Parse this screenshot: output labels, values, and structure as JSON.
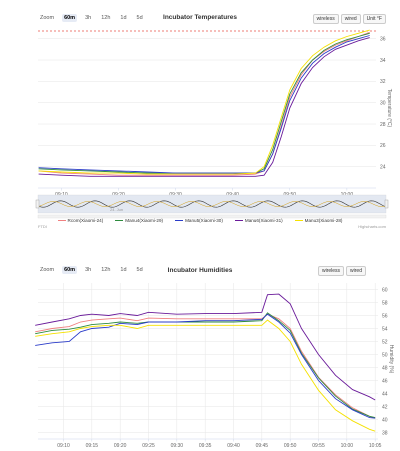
{
  "chart1": {
    "title": "Incubator Temperatures",
    "zoom_label": "Zoom",
    "zoom_options": [
      "60m",
      "3h",
      "12h",
      "1d",
      "5d"
    ],
    "zoom_selected": "60m",
    "toolbar": [
      "wireless",
      "wired",
      "Unit °F"
    ],
    "ylabel": "Temperature (°C)",
    "credit_left": "FTDI",
    "credit_right": "Highcharts.com",
    "navigator_label": "24. Jun",
    "chart_data": {
      "type": "line",
      "title": "Incubator Temperatures",
      "ylabel": "Temperature (°C)",
      "ylim": [
        22,
        37
      ],
      "yticks": [
        24,
        26,
        28,
        30,
        32,
        34,
        36
      ],
      "xlim": [
        5.9,
        65.1
      ],
      "xticks": [
        [
          10,
          "09:10"
        ],
        [
          20,
          "09:20"
        ],
        [
          30,
          "09:30"
        ],
        [
          40,
          "09:40"
        ],
        [
          50,
          "09:50"
        ],
        [
          60,
          "10:00"
        ]
      ],
      "legend_position": "bottom",
      "series": [
        {
          "name": "Rcom(Xiaomi-24)",
          "color": "#f08080",
          "x": [
            6,
            10,
            15,
            20,
            25,
            30,
            35,
            40,
            44,
            45.5,
            47,
            48.5,
            50,
            52,
            54,
            56,
            58,
            60,
            62,
            64
          ],
          "y": [
            23.6,
            23.4,
            23.3,
            23.2,
            23.2,
            23.2,
            23.2,
            23.2,
            23.3,
            23.6,
            25.2,
            27.8,
            30.5,
            32.6,
            34.0,
            34.8,
            35.4,
            35.8,
            36.2,
            36.6
          ]
        },
        {
          "name": "Manu4(Xiaomi-29)",
          "color": "#2e8b3e",
          "x": [
            6,
            10,
            15,
            20,
            25,
            30,
            35,
            40,
            44,
            45.5,
            47,
            48.5,
            50,
            52,
            54,
            56,
            58,
            60,
            62,
            64
          ],
          "y": [
            23.8,
            23.7,
            23.6,
            23.5,
            23.4,
            23.4,
            23.4,
            23.4,
            23.4,
            23.8,
            25.6,
            28.2,
            30.8,
            32.8,
            34.0,
            34.9,
            35.5,
            35.9,
            36.2,
            36.5
          ]
        },
        {
          "name": "Manu5(Xiaomi-30)",
          "color": "#2b3cc8",
          "x": [
            6,
            10,
            15,
            20,
            25,
            30,
            35,
            40,
            44,
            45.5,
            47,
            48.5,
            50,
            52,
            54,
            56,
            58,
            60,
            62,
            64
          ],
          "y": [
            23.9,
            23.8,
            23.7,
            23.6,
            23.5,
            23.4,
            23.4,
            23.4,
            23.4,
            23.6,
            25.2,
            27.6,
            30.2,
            32.3,
            33.7,
            34.6,
            35.2,
            35.7,
            36.0,
            36.3
          ]
        },
        {
          "name": "Manu6(Xiaomi-31)",
          "color": "#6a1b9a",
          "x": [
            6,
            10,
            15,
            20,
            25,
            30,
            35,
            40,
            44,
            45.5,
            47,
            48.5,
            50,
            52,
            54,
            56,
            58,
            60,
            62,
            64
          ],
          "y": [
            23.3,
            23.2,
            23.1,
            23.1,
            23.1,
            23.1,
            23.1,
            23.1,
            23.1,
            23.2,
            24.4,
            26.8,
            29.5,
            31.8,
            33.3,
            34.3,
            35.0,
            35.4,
            35.8,
            36.1
          ]
        },
        {
          "name": "Manu3(Xiaomi-28)",
          "color": "#f5e100",
          "x": [
            6,
            10,
            15,
            20,
            25,
            30,
            35,
            40,
            44,
            45.5,
            47,
            48.5,
            50,
            52,
            54,
            56,
            58,
            60,
            62,
            64
          ],
          "y": [
            23.6,
            23.5,
            23.4,
            23.4,
            23.3,
            23.3,
            23.3,
            23.3,
            23.4,
            24.0,
            26.0,
            28.6,
            31.2,
            33.2,
            34.4,
            35.2,
            35.8,
            36.2,
            36.5,
            36.8
          ]
        }
      ]
    }
  },
  "chart2": {
    "title": "Incubator Humidities",
    "zoom_label": "Zoom",
    "zoom_options": [
      "60m",
      "3h",
      "12h",
      "1d",
      "5d"
    ],
    "zoom_selected": "60m",
    "toolbar": [
      "wireless",
      "wired"
    ],
    "ylabel": "Humidity (%)",
    "chart_data": {
      "type": "line",
      "title": "Incubator Humidities",
      "ylabel": "Humidity (%)",
      "ylim": [
        37,
        61
      ],
      "yticks": [
        38,
        40,
        42,
        44,
        46,
        48,
        50,
        52,
        54,
        56,
        58,
        60
      ],
      "xlim": [
        5.5,
        65.5
      ],
      "xticks": [
        [
          10,
          "09:10"
        ],
        [
          15,
          "09:15"
        ],
        [
          20,
          "09:20"
        ],
        [
          25,
          "09:25"
        ],
        [
          30,
          "09:30"
        ],
        [
          35,
          "09:35"
        ],
        [
          40,
          "09:40"
        ],
        [
          45,
          "09:45"
        ],
        [
          50,
          "09:50"
        ],
        [
          55,
          "09:55"
        ],
        [
          60,
          "10:00"
        ],
        [
          65,
          "10:05"
        ]
      ],
      "series": [
        {
          "name": "Rcom(Xiaomi-24)",
          "color": "#f08080",
          "x": [
            5,
            8,
            11,
            13,
            15,
            18,
            20,
            23,
            25,
            30,
            35,
            40,
            45,
            46,
            48,
            50,
            52,
            55,
            58,
            61,
            64,
            65
          ],
          "y": [
            53.5,
            54.0,
            54.3,
            55.0,
            55.3,
            55.5,
            55.6,
            55.2,
            55.6,
            55.5,
            55.5,
            55.5,
            55.5,
            56.2,
            55.5,
            54.0,
            50.5,
            46.5,
            43.8,
            41.8,
            40.5,
            40.2
          ]
        },
        {
          "name": "Manu4(Xiaomi-29)",
          "color": "#2e8b3e",
          "x": [
            5,
            8,
            11,
            13,
            15,
            18,
            20,
            23,
            25,
            30,
            35,
            40,
            45,
            46,
            48,
            50,
            52,
            55,
            58,
            61,
            64,
            65
          ],
          "y": [
            53.2,
            53.7,
            53.9,
            54.2,
            54.6,
            54.8,
            55.0,
            54.8,
            55.0,
            55.0,
            55.0,
            55.0,
            55.2,
            56.4,
            55.2,
            53.7,
            50.2,
            46.4,
            43.6,
            41.6,
            40.5,
            40.3
          ]
        },
        {
          "name": "Manu5(Xiaomi-30)",
          "color": "#2b3cc8",
          "x": [
            5,
            8,
            11,
            13,
            15,
            18,
            20,
            23,
            25,
            30,
            35,
            40,
            45,
            46,
            48,
            50,
            52,
            55,
            58,
            61,
            64,
            65
          ],
          "y": [
            51.4,
            51.8,
            52.0,
            53.5,
            54.0,
            54.2,
            54.8,
            54.6,
            55.0,
            55.0,
            55.2,
            55.2,
            55.4,
            56.2,
            55.0,
            53.3,
            50.0,
            46.0,
            43.2,
            41.5,
            40.3,
            40.2
          ]
        },
        {
          "name": "Manu6(Xiaomi-31)",
          "color": "#6a1b9a",
          "x": [
            5,
            8,
            11,
            13,
            15,
            18,
            20,
            23,
            25,
            30,
            35,
            40,
            45,
            46,
            48,
            50,
            52,
            55,
            58,
            61,
            64,
            65
          ],
          "y": [
            54.5,
            55.0,
            55.5,
            56.0,
            56.2,
            56.0,
            56.3,
            56.0,
            56.5,
            56.2,
            56.3,
            56.3,
            56.5,
            59.2,
            59.3,
            57.8,
            54.0,
            50.0,
            46.8,
            44.6,
            43.5,
            43.0
          ]
        },
        {
          "name": "Manu3(Xiaomi-28)",
          "color": "#f5e100",
          "x": [
            5,
            8,
            11,
            13,
            15,
            18,
            20,
            23,
            25,
            30,
            35,
            40,
            45,
            46,
            48,
            50,
            52,
            55,
            58,
            61,
            64,
            65
          ],
          "y": [
            52.8,
            53.2,
            53.5,
            54.0,
            54.3,
            54.5,
            54.5,
            54.0,
            54.5,
            54.5,
            54.5,
            54.5,
            54.5,
            55.3,
            54.0,
            52.0,
            48.5,
            44.5,
            41.5,
            39.8,
            38.5,
            38.2
          ]
        }
      ]
    }
  },
  "colors": {
    "grid": "#e6e6e6",
    "axis": "#ccd6eb",
    "plotband": "#e8534a"
  }
}
